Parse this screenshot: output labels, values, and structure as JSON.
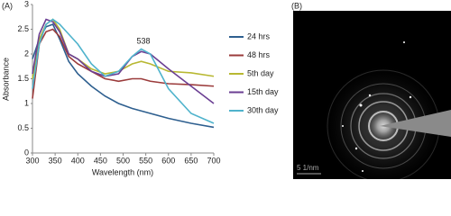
{
  "panel_labels": [
    "(A)",
    "(B)"
  ],
  "image_scale": "5 1/nm",
  "chart_data": {
    "type": "line",
    "x_label": "Wavelength (nm)",
    "y_label": "Absorbance",
    "x": [
      300,
      315,
      330,
      345,
      360,
      380,
      400,
      430,
      460,
      490,
      520,
      540,
      560,
      600,
      650,
      700
    ],
    "series": [
      {
        "name": "24 hrs",
        "color": "#2e5f8f",
        "values": [
          1.9,
          2.3,
          2.55,
          2.6,
          2.3,
          1.85,
          1.6,
          1.35,
          1.15,
          1.0,
          0.9,
          0.85,
          0.8,
          0.7,
          0.6,
          0.52
        ]
      },
      {
        "name": "48 hrs",
        "color": "#9b3b3b",
        "values": [
          1.1,
          2.2,
          2.45,
          2.5,
          2.35,
          1.95,
          1.8,
          1.65,
          1.5,
          1.45,
          1.5,
          1.5,
          1.45,
          1.4,
          1.38,
          1.35
        ]
      },
      {
        "name": "5th day",
        "color": "#b8b832",
        "values": [
          1.5,
          2.3,
          2.6,
          2.7,
          2.5,
          2.0,
          1.9,
          1.7,
          1.6,
          1.65,
          1.8,
          1.85,
          1.8,
          1.65,
          1.62,
          1.55
        ]
      },
      {
        "name": "15th day",
        "color": "#6b3f93",
        "values": [
          1.6,
          2.4,
          2.7,
          2.65,
          2.45,
          2.0,
          1.9,
          1.65,
          1.55,
          1.6,
          1.95,
          2.05,
          2.0,
          1.7,
          1.35,
          1.0
        ]
      },
      {
        "name": "30th day",
        "color": "#4fb3cc",
        "values": [
          1.3,
          2.2,
          2.6,
          2.7,
          2.6,
          2.4,
          2.2,
          1.8,
          1.55,
          1.65,
          1.95,
          2.1,
          2.0,
          1.3,
          0.8,
          0.6
        ]
      }
    ],
    "annotations": [
      "538"
    ],
    "xlim": [
      300,
      700
    ],
    "xticks": [
      300,
      350,
      400,
      450,
      500,
      550,
      600,
      650,
      700
    ],
    "ylim": [
      0,
      3
    ],
    "yticks": [
      0,
      0.5,
      1,
      1.5,
      2,
      2.5,
      3
    ],
    "legend": "right"
  }
}
